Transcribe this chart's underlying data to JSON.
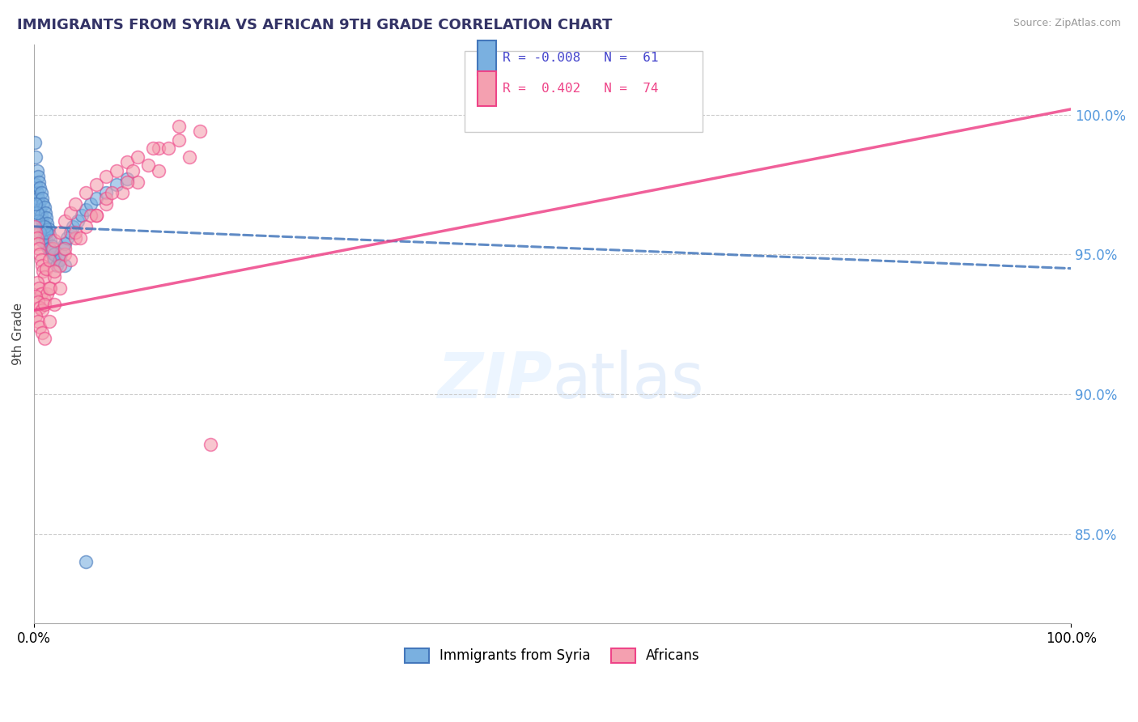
{
  "title": "IMMIGRANTS FROM SYRIA VS AFRICAN 9TH GRADE CORRELATION CHART",
  "source": "Source: ZipAtlas.com",
  "ylabel": "9th Grade",
  "r_syria": -0.008,
  "r_africa": 0.402,
  "n_syria": 61,
  "n_africa": 74,
  "color_syria": "#7ab0e0",
  "color_africa": "#f4a0b0",
  "color_syria_line": "#4477bb",
  "color_africa_line": "#ee4488",
  "ytick_values": [
    1.0,
    0.95,
    0.9,
    0.85
  ],
  "ytick_labels": [
    "100.0%",
    "95.0%",
    "90.0%",
    "85.0%"
  ],
  "xlim": [
    0.0,
    1.0
  ],
  "ylim": [
    0.818,
    1.025
  ],
  "legend_syria": "Immigrants from Syria",
  "legend_africa": "Africans",
  "syria_x": [
    0.001,
    0.002,
    0.002,
    0.003,
    0.003,
    0.004,
    0.004,
    0.005,
    0.005,
    0.006,
    0.006,
    0.007,
    0.007,
    0.008,
    0.008,
    0.009,
    0.009,
    0.01,
    0.01,
    0.011,
    0.011,
    0.012,
    0.012,
    0.013,
    0.013,
    0.014,
    0.014,
    0.015,
    0.016,
    0.017,
    0.018,
    0.019,
    0.02,
    0.022,
    0.024,
    0.026,
    0.028,
    0.03,
    0.032,
    0.035,
    0.038,
    0.042,
    0.046,
    0.05,
    0.055,
    0.06,
    0.07,
    0.08,
    0.09,
    0.01,
    0.008,
    0.006,
    0.004,
    0.003,
    0.002,
    0.015,
    0.02,
    0.025,
    0.03,
    0.012,
    0.05
  ],
  "syria_y": [
    0.99,
    0.985,
    0.975,
    0.98,
    0.972,
    0.978,
    0.97,
    0.976,
    0.968,
    0.974,
    0.966,
    0.972,
    0.964,
    0.97,
    0.962,
    0.968,
    0.96,
    0.967,
    0.958,
    0.965,
    0.956,
    0.963,
    0.955,
    0.961,
    0.953,
    0.959,
    0.952,
    0.957,
    0.955,
    0.953,
    0.951,
    0.949,
    0.948,
    0.946,
    0.948,
    0.95,
    0.952,
    0.954,
    0.956,
    0.958,
    0.96,
    0.962,
    0.964,
    0.966,
    0.968,
    0.97,
    0.972,
    0.975,
    0.977,
    0.96,
    0.955,
    0.958,
    0.962,
    0.965,
    0.968,
    0.952,
    0.95,
    0.948,
    0.946,
    0.958,
    0.84
  ],
  "africa_x": [
    0.001,
    0.002,
    0.003,
    0.004,
    0.005,
    0.006,
    0.007,
    0.008,
    0.009,
    0.01,
    0.012,
    0.015,
    0.018,
    0.02,
    0.025,
    0.03,
    0.035,
    0.04,
    0.05,
    0.06,
    0.07,
    0.08,
    0.09,
    0.1,
    0.12,
    0.14,
    0.16,
    0.003,
    0.005,
    0.007,
    0.01,
    0.013,
    0.016,
    0.02,
    0.025,
    0.03,
    0.04,
    0.05,
    0.06,
    0.07,
    0.085,
    0.1,
    0.12,
    0.15,
    0.002,
    0.004,
    0.006,
    0.008,
    0.01,
    0.015,
    0.02,
    0.03,
    0.04,
    0.055,
    0.07,
    0.09,
    0.11,
    0.13,
    0.002,
    0.004,
    0.006,
    0.008,
    0.01,
    0.015,
    0.02,
    0.025,
    0.035,
    0.045,
    0.06,
    0.075,
    0.095,
    0.115,
    0.14,
    0.17
  ],
  "africa_y": [
    0.96,
    0.958,
    0.956,
    0.954,
    0.952,
    0.95,
    0.948,
    0.946,
    0.944,
    0.942,
    0.945,
    0.948,
    0.952,
    0.955,
    0.958,
    0.962,
    0.965,
    0.968,
    0.972,
    0.975,
    0.978,
    0.98,
    0.983,
    0.985,
    0.988,
    0.991,
    0.994,
    0.94,
    0.938,
    0.936,
    0.934,
    0.936,
    0.938,
    0.942,
    0.946,
    0.95,
    0.956,
    0.96,
    0.964,
    0.968,
    0.972,
    0.976,
    0.98,
    0.985,
    0.935,
    0.933,
    0.931,
    0.93,
    0.932,
    0.938,
    0.944,
    0.952,
    0.958,
    0.964,
    0.97,
    0.976,
    0.982,
    0.988,
    0.928,
    0.926,
    0.924,
    0.922,
    0.92,
    0.926,
    0.932,
    0.938,
    0.948,
    0.956,
    0.964,
    0.972,
    0.98,
    0.988,
    0.996,
    0.882
  ],
  "syria_line_x": [
    0.0,
    1.0
  ],
  "syria_line_y": [
    0.96,
    0.945
  ],
  "africa_line_x": [
    0.0,
    1.0
  ],
  "africa_line_y": [
    0.93,
    1.002
  ]
}
